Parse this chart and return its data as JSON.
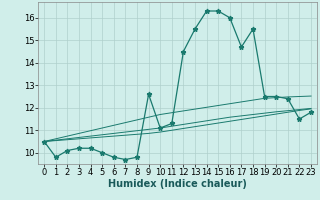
{
  "xlabel": "Humidex (Indice chaleur)",
  "bg_color": "#d0eeea",
  "grid_color": "#b0d0cc",
  "line_color": "#1a7a6e",
  "x_main": [
    0,
    1,
    2,
    3,
    4,
    5,
    6,
    7,
    8,
    9,
    10,
    11,
    12,
    13,
    14,
    15,
    16,
    17,
    18,
    19,
    20,
    21,
    22,
    23
  ],
  "y_main": [
    10.5,
    9.8,
    10.1,
    10.2,
    10.2,
    10.0,
    9.8,
    9.7,
    9.8,
    12.6,
    11.1,
    11.3,
    14.5,
    15.5,
    16.3,
    16.3,
    16.0,
    14.7,
    15.5,
    12.5,
    12.5,
    12.4,
    11.5,
    11.8
  ],
  "y_line1": [
    10.5,
    10.62,
    10.74,
    10.86,
    10.98,
    11.1,
    11.22,
    11.34,
    11.46,
    11.58,
    11.7,
    11.78,
    11.86,
    11.94,
    12.02,
    12.1,
    12.18,
    12.26,
    12.34,
    12.42,
    12.45,
    12.48,
    12.5,
    12.52
  ],
  "y_line2": [
    10.5,
    10.56,
    10.62,
    10.68,
    10.74,
    10.8,
    10.86,
    10.92,
    10.98,
    11.04,
    11.1,
    11.18,
    11.26,
    11.34,
    11.42,
    11.5,
    11.58,
    11.64,
    11.7,
    11.76,
    11.82,
    11.87,
    11.92,
    11.97
  ],
  "y_line3": [
    10.5,
    10.54,
    10.58,
    10.62,
    10.66,
    10.7,
    10.74,
    10.78,
    10.82,
    10.86,
    10.92,
    11.0,
    11.08,
    11.16,
    11.24,
    11.32,
    11.4,
    11.48,
    11.56,
    11.64,
    11.72,
    11.8,
    11.88,
    11.95
  ],
  "ylim": [
    9.5,
    16.7
  ],
  "yticks": [
    10,
    11,
    12,
    13,
    14,
    15,
    16
  ],
  "xticks": [
    0,
    1,
    2,
    3,
    4,
    5,
    6,
    7,
    8,
    9,
    10,
    11,
    12,
    13,
    14,
    15,
    16,
    17,
    18,
    19,
    20,
    21,
    22,
    23
  ],
  "tick_fontsize": 6,
  "xlabel_fontsize": 7
}
